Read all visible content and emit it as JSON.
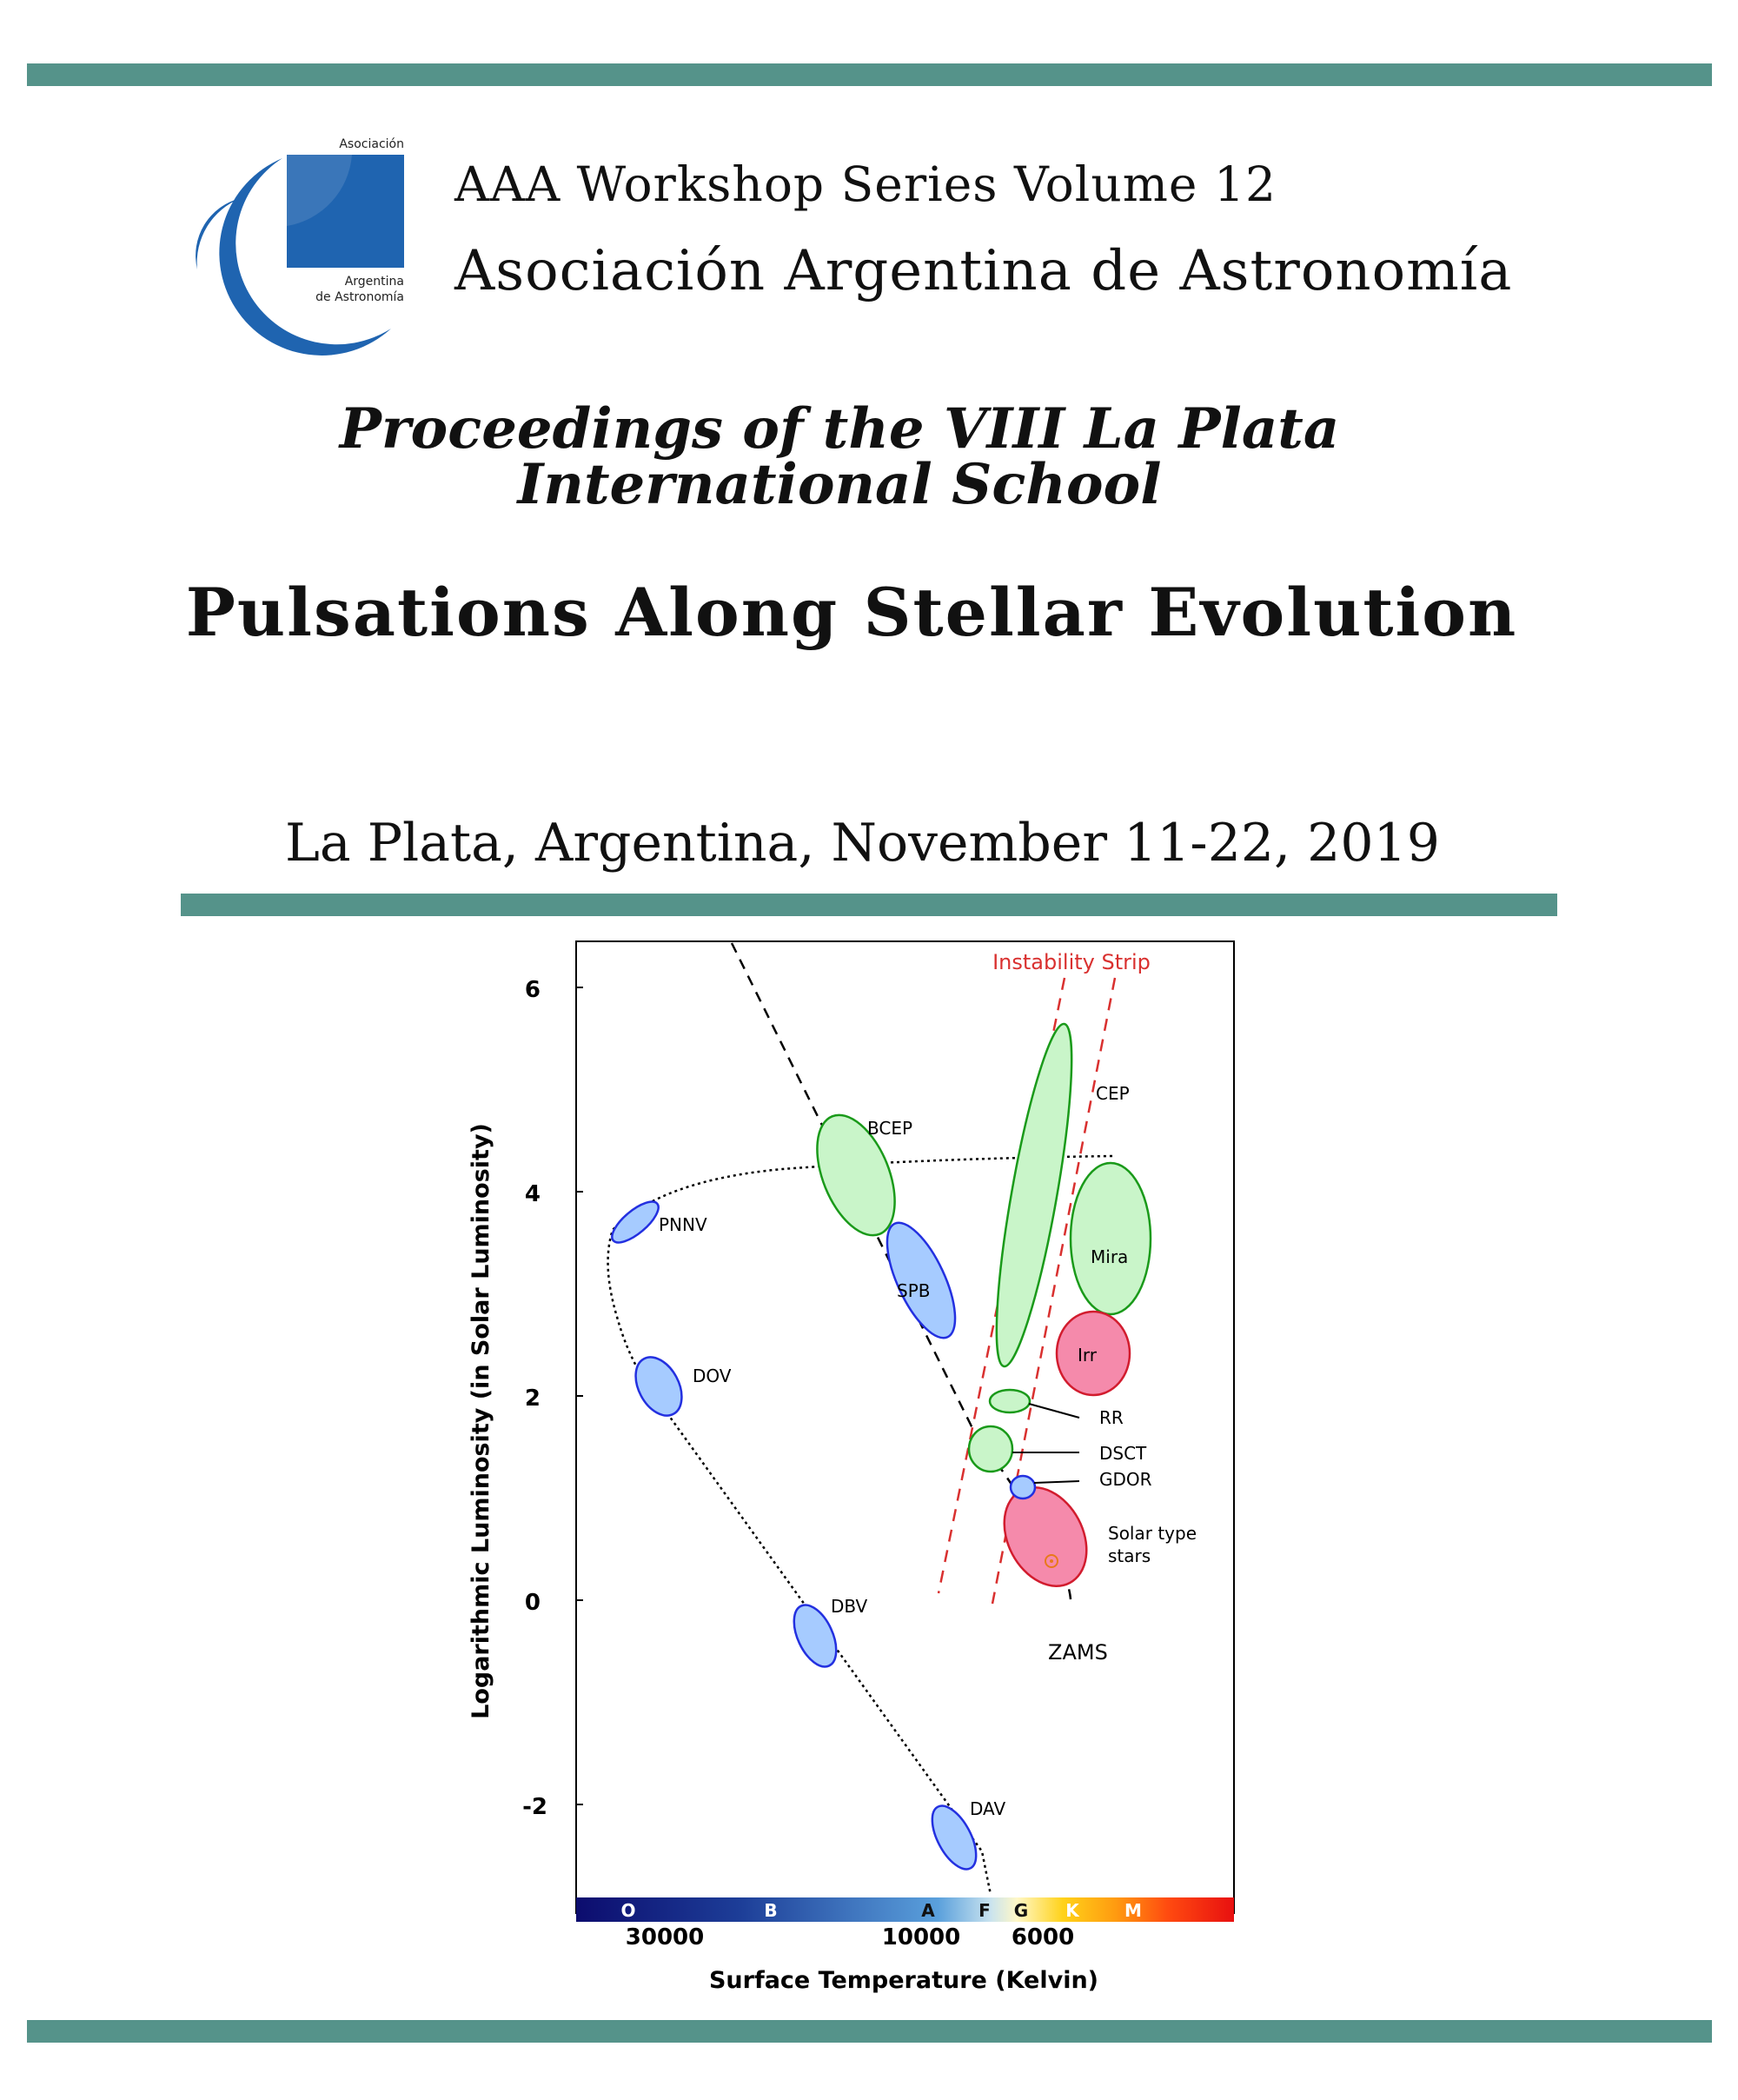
{
  "header": {
    "logo_text": {
      "top": "Asociación",
      "mid": "Argentina",
      "bottom": "de Astronomía"
    },
    "series": "AAA Workshop Series Volume 12",
    "society": "Asociación Argentina de Astronomía"
  },
  "proceedings": {
    "line1": "Proceedings of the VIII La Plata",
    "line2": "International School"
  },
  "main_title": "Pulsations Along Stellar Evolution",
  "place_date": "La Plata, Argentina, November 11-22, 2019",
  "colors": {
    "rule": "#55938a",
    "logo_blue": "#1f64b0",
    "strip": "#d9302f"
  },
  "chart_data": {
    "type": "scatter",
    "title": "",
    "xlabel": "Surface Temperature (Kelvin)",
    "ylabel": "Logarithmic Luminosity (in Solar Luminosity)",
    "ylim": [
      -3,
      6.5
    ],
    "yticks": [
      "6",
      "4",
      "2",
      "0",
      "-2"
    ],
    "xticks": [
      "30000",
      "10000",
      "6000"
    ],
    "spectral_classes": [
      "O",
      "B",
      "A",
      "F",
      "G",
      "K",
      "M"
    ],
    "annotations": {
      "strip": "Instability Strip",
      "zams": "ZAMS"
    },
    "regions": [
      {
        "name": "BCEP",
        "color": "green"
      },
      {
        "name": "CEP",
        "color": "green"
      },
      {
        "name": "Mira",
        "color": "green"
      },
      {
        "name": "Irr",
        "color": "pink"
      },
      {
        "name": "SPB",
        "color": "blue"
      },
      {
        "name": "PNNV",
        "color": "blue"
      },
      {
        "name": "DOV",
        "color": "blue"
      },
      {
        "name": "RR",
        "color": "green"
      },
      {
        "name": "DSCT",
        "color": "green"
      },
      {
        "name": "GDOR",
        "color": "blue"
      },
      {
        "name": "Solar type",
        "name2": "stars",
        "color": "pink"
      },
      {
        "name": "DBV",
        "color": "blue"
      },
      {
        "name": "DAV",
        "color": "blue"
      }
    ]
  }
}
